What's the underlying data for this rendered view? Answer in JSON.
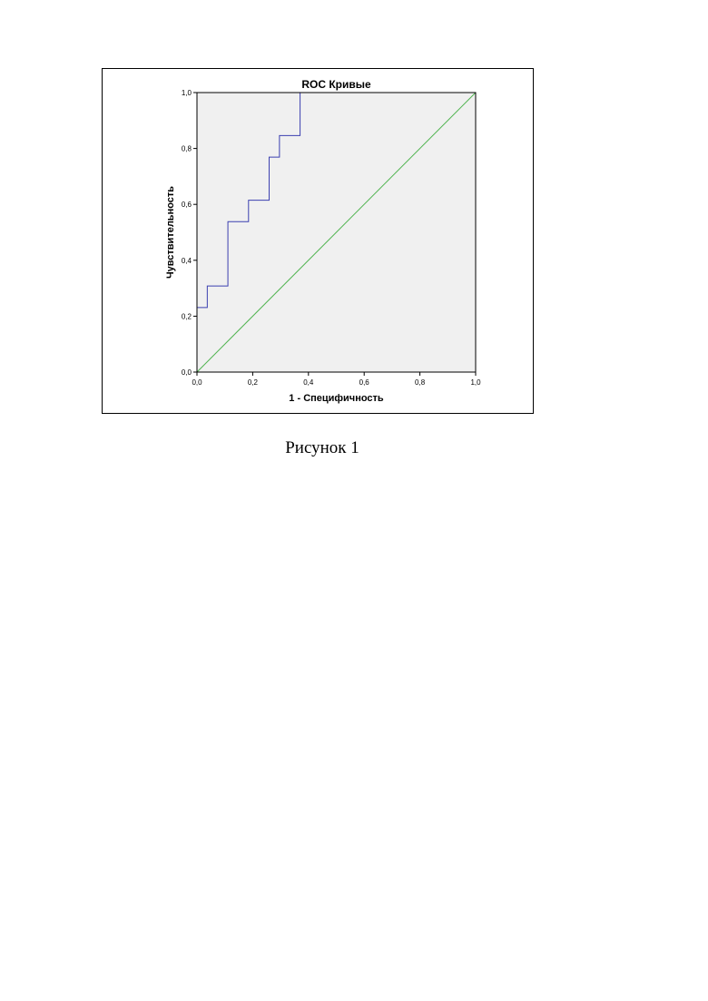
{
  "chart_data": {
    "type": "line",
    "title": "ROC Кривые",
    "xlabel": "1 - Специфичность",
    "ylabel": "Чувствительность",
    "xlim": [
      0,
      1
    ],
    "ylim": [
      0,
      1
    ],
    "x_ticks": [
      "0,0",
      "0,2",
      "0,4",
      "0,6",
      "0,8",
      "1,0"
    ],
    "y_ticks": [
      "0,0",
      "0,2",
      "0,4",
      "0,6",
      "0,8",
      "1,0"
    ],
    "grid": false,
    "plot_background": "#f0f0f0",
    "series": [
      {
        "color": "#3b3fb0",
        "style": "step",
        "points": [
          [
            0.0,
            0.0
          ],
          [
            0.0,
            0.231
          ],
          [
            0.037,
            0.231
          ],
          [
            0.037,
            0.308
          ],
          [
            0.111,
            0.308
          ],
          [
            0.111,
            0.538
          ],
          [
            0.185,
            0.538
          ],
          [
            0.185,
            0.615
          ],
          [
            0.259,
            0.615
          ],
          [
            0.259,
            0.769
          ],
          [
            0.296,
            0.769
          ],
          [
            0.296,
            0.846
          ],
          [
            0.37,
            0.846
          ],
          [
            0.37,
            1.0
          ],
          [
            1.0,
            1.0
          ]
        ]
      },
      {
        "color": "#4fb34f",
        "style": "reference",
        "points": [
          [
            0.0,
            0.0
          ],
          [
            1.0,
            1.0
          ]
        ]
      }
    ]
  },
  "caption": "Рисунок 1"
}
